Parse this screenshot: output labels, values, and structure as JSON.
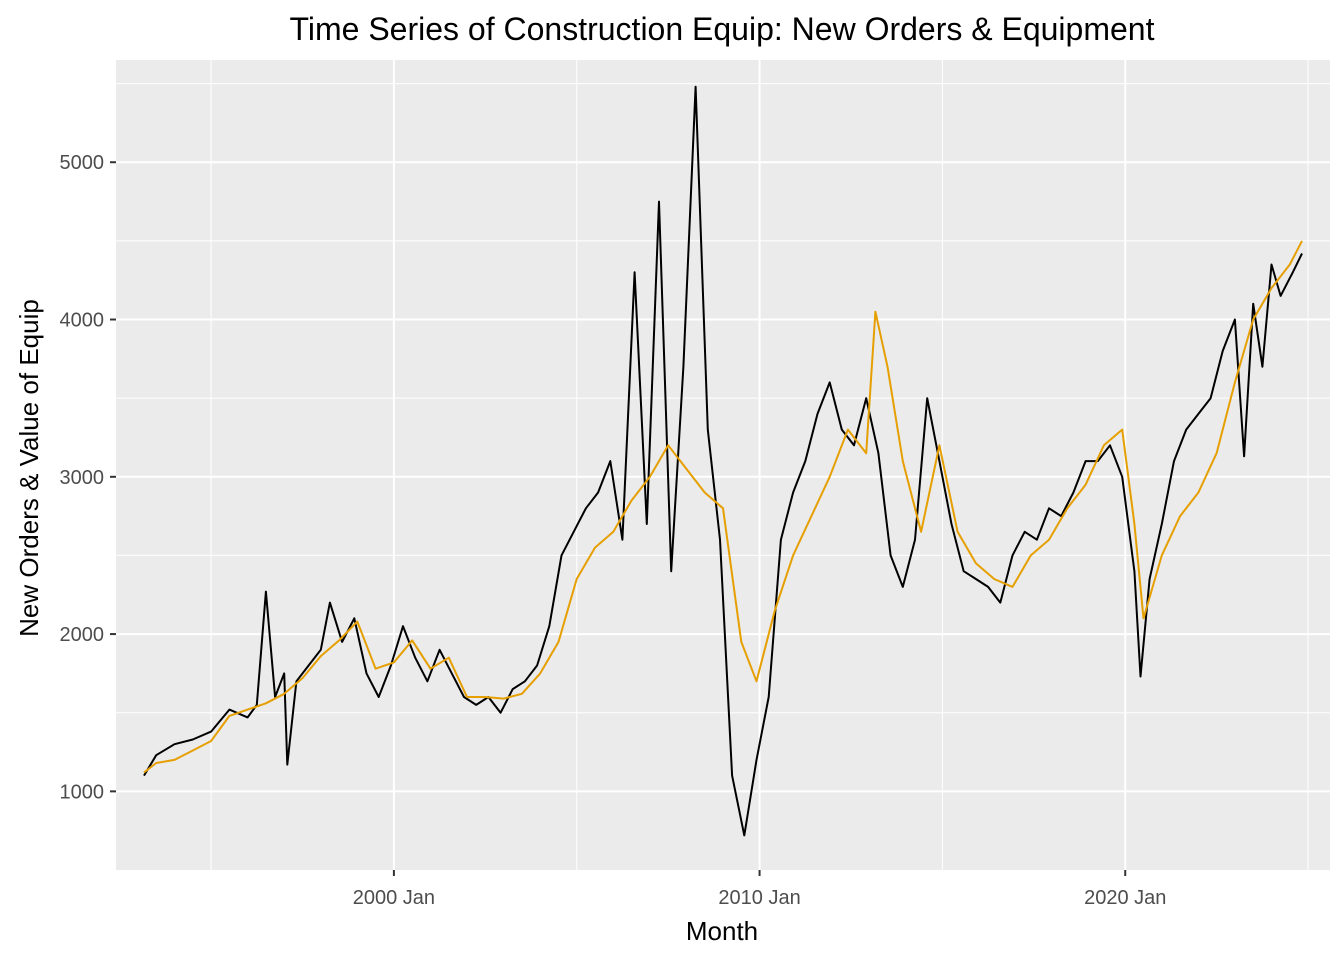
{
  "chart_data": {
    "type": "line",
    "title": "Time Series of Construction Equip: New Orders & Equipment",
    "xlabel": "Month",
    "ylabel": "New Orders & Value of Equip",
    "x_ticks": [
      "2000 Jan",
      "2010 Jan",
      "2020 Jan"
    ],
    "y_ticks": [
      1000,
      2000,
      3000,
      4000,
      5000
    ],
    "xlim": [
      1992.4,
      2025.6
    ],
    "ylim": [
      500,
      5650
    ],
    "grid": true,
    "legend": "none",
    "colors": {
      "panel": "#EBEBEB",
      "grid": "#FFFFFF",
      "orders": "#000000",
      "value": "#E69F00"
    },
    "series": [
      {
        "color": "#000000",
        "points": [
          [
            "1993-03",
            1100
          ],
          [
            "1993-07",
            1230
          ],
          [
            "1994-01",
            1300
          ],
          [
            "1994-07",
            1330
          ],
          [
            "1995-01",
            1380
          ],
          [
            "1995-07",
            1520
          ],
          [
            "1996-01",
            1470
          ],
          [
            "1996-04",
            1550
          ],
          [
            "1996-07",
            2270
          ],
          [
            "1996-10",
            1600
          ],
          [
            "1997-01",
            1750
          ],
          [
            "1997-02",
            1170
          ],
          [
            "1997-05",
            1700
          ],
          [
            "1997-09",
            1800
          ],
          [
            "1998-01",
            1900
          ],
          [
            "1998-04",
            2200
          ],
          [
            "1998-08",
            1950
          ],
          [
            "1998-12",
            2100
          ],
          [
            "1999-04",
            1750
          ],
          [
            "1999-08",
            1600
          ],
          [
            "1999-12",
            1800
          ],
          [
            "2000-04",
            2050
          ],
          [
            "2000-08",
            1850
          ],
          [
            "2000-12",
            1700
          ],
          [
            "2001-04",
            1900
          ],
          [
            "2001-08",
            1750
          ],
          [
            "2001-12",
            1600
          ],
          [
            "2002-04",
            1550
          ],
          [
            "2002-08",
            1600
          ],
          [
            "2002-12",
            1500
          ],
          [
            "2003-04",
            1650
          ],
          [
            "2003-08",
            1700
          ],
          [
            "2003-12",
            1800
          ],
          [
            "2004-04",
            2050
          ],
          [
            "2004-08",
            2500
          ],
          [
            "2004-12",
            2650
          ],
          [
            "2005-04",
            2800
          ],
          [
            "2005-08",
            2900
          ],
          [
            "2005-12",
            3100
          ],
          [
            "2006-04",
            2600
          ],
          [
            "2006-08",
            4300
          ],
          [
            "2006-12",
            2700
          ],
          [
            "2007-04",
            4750
          ],
          [
            "2007-08",
            2400
          ],
          [
            "2007-12",
            3700
          ],
          [
            "2008-04",
            5480
          ],
          [
            "2008-08",
            3300
          ],
          [
            "2008-12",
            2600
          ],
          [
            "2009-04",
            1100
          ],
          [
            "2009-08",
            720
          ],
          [
            "2009-12",
            1200
          ],
          [
            "2010-04",
            1600
          ],
          [
            "2010-08",
            2600
          ],
          [
            "2010-12",
            2900
          ],
          [
            "2011-04",
            3100
          ],
          [
            "2011-08",
            3400
          ],
          [
            "2011-12",
            3600
          ],
          [
            "2012-04",
            3300
          ],
          [
            "2012-08",
            3200
          ],
          [
            "2012-12",
            3500
          ],
          [
            "2013-04",
            3150
          ],
          [
            "2013-08",
            2500
          ],
          [
            "2013-12",
            2300
          ],
          [
            "2014-04",
            2600
          ],
          [
            "2014-08",
            3500
          ],
          [
            "2014-12",
            3100
          ],
          [
            "2015-04",
            2700
          ],
          [
            "2015-08",
            2400
          ],
          [
            "2015-12",
            2350
          ],
          [
            "2016-04",
            2300
          ],
          [
            "2016-08",
            2200
          ],
          [
            "2016-12",
            2500
          ],
          [
            "2017-04",
            2650
          ],
          [
            "2017-08",
            2600
          ],
          [
            "2017-12",
            2800
          ],
          [
            "2018-04",
            2750
          ],
          [
            "2018-08",
            2900
          ],
          [
            "2018-12",
            3100
          ],
          [
            "2019-04",
            3100
          ],
          [
            "2019-08",
            3200
          ],
          [
            "2019-12",
            3000
          ],
          [
            "2020-04",
            2400
          ],
          [
            "2020-06",
            1730
          ],
          [
            "2020-09",
            2350
          ],
          [
            "2021-01",
            2700
          ],
          [
            "2021-05",
            3100
          ],
          [
            "2021-09",
            3300
          ],
          [
            "2022-01",
            3400
          ],
          [
            "2022-05",
            3500
          ],
          [
            "2022-09",
            3800
          ],
          [
            "2023-01",
            4000
          ],
          [
            "2023-04",
            3130
          ],
          [
            "2023-07",
            4100
          ],
          [
            "2023-10",
            3700
          ],
          [
            "2024-01",
            4350
          ],
          [
            "2024-04",
            4150
          ],
          [
            "2024-08",
            4300
          ],
          [
            "2024-11",
            4420
          ]
        ]
      },
      {
        "color": "#E69F00",
        "points": [
          [
            "1993-03",
            1120
          ],
          [
            "1993-07",
            1180
          ],
          [
            "1994-01",
            1200
          ],
          [
            "1994-07",
            1260
          ],
          [
            "1995-01",
            1320
          ],
          [
            "1995-07",
            1480
          ],
          [
            "1996-01",
            1520
          ],
          [
            "1996-07",
            1560
          ],
          [
            "1997-01",
            1620
          ],
          [
            "1997-07",
            1720
          ],
          [
            "1998-01",
            1860
          ],
          [
            "1998-07",
            1960
          ],
          [
            "1999-01",
            2080
          ],
          [
            "1999-07",
            1780
          ],
          [
            "2000-01",
            1820
          ],
          [
            "2000-07",
            1960
          ],
          [
            "2001-01",
            1780
          ],
          [
            "2001-07",
            1850
          ],
          [
            "2002-01",
            1600
          ],
          [
            "2002-07",
            1600
          ],
          [
            "2003-01",
            1590
          ],
          [
            "2003-07",
            1620
          ],
          [
            "2004-01",
            1750
          ],
          [
            "2004-07",
            1950
          ],
          [
            "2005-01",
            2350
          ],
          [
            "2005-07",
            2550
          ],
          [
            "2006-01",
            2650
          ],
          [
            "2006-07",
            2850
          ],
          [
            "2007-01",
            3000
          ],
          [
            "2007-07",
            3200
          ],
          [
            "2008-01",
            3050
          ],
          [
            "2008-07",
            2900
          ],
          [
            "2009-01",
            2800
          ],
          [
            "2009-07",
            1950
          ],
          [
            "2009-12",
            1700
          ],
          [
            "2010-06",
            2150
          ],
          [
            "2010-12",
            2500
          ],
          [
            "2011-06",
            2750
          ],
          [
            "2011-12",
            3000
          ],
          [
            "2012-06",
            3300
          ],
          [
            "2012-12",
            3150
          ],
          [
            "2013-03",
            4050
          ],
          [
            "2013-07",
            3700
          ],
          [
            "2013-12",
            3100
          ],
          [
            "2014-06",
            2650
          ],
          [
            "2014-12",
            3200
          ],
          [
            "2015-06",
            2650
          ],
          [
            "2015-12",
            2450
          ],
          [
            "2016-06",
            2350
          ],
          [
            "2016-12",
            2300
          ],
          [
            "2017-06",
            2500
          ],
          [
            "2017-12",
            2600
          ],
          [
            "2018-06",
            2800
          ],
          [
            "2018-12",
            2950
          ],
          [
            "2019-06",
            3200
          ],
          [
            "2019-12",
            3300
          ],
          [
            "2020-04",
            2700
          ],
          [
            "2020-07",
            2100
          ],
          [
            "2021-01",
            2500
          ],
          [
            "2021-07",
            2750
          ],
          [
            "2022-01",
            2900
          ],
          [
            "2022-07",
            3150
          ],
          [
            "2023-01",
            3600
          ],
          [
            "2023-07",
            4000
          ],
          [
            "2024-01",
            4200
          ],
          [
            "2024-07",
            4350
          ],
          [
            "2024-11",
            4500
          ]
        ]
      }
    ]
  }
}
